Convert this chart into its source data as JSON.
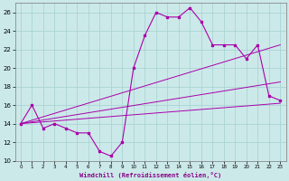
{
  "xlabel": "Windchill (Refroidissement éolien,°C)",
  "ylabel": "",
  "xlim": [
    -0.5,
    23.5
  ],
  "ylim": [
    10,
    27
  ],
  "xticks": [
    0,
    1,
    2,
    3,
    4,
    5,
    6,
    7,
    8,
    9,
    10,
    11,
    12,
    13,
    14,
    15,
    16,
    17,
    18,
    19,
    20,
    21,
    22,
    23
  ],
  "yticks": [
    10,
    12,
    14,
    16,
    18,
    20,
    22,
    24,
    26
  ],
  "bg_color": "#cce9e9",
  "grid_color": "#aad4d4",
  "line_color": "#aa00aa",
  "lines": [
    {
      "x": [
        0,
        1,
        2,
        3,
        4,
        5,
        6,
        7,
        8,
        9,
        10,
        11,
        12,
        13,
        14,
        15,
        16,
        17,
        18,
        19,
        20,
        21,
        22,
        23
      ],
      "y": [
        14,
        16,
        13.5,
        14,
        13.5,
        13,
        13,
        11,
        10.5,
        12,
        20,
        23.5,
        26,
        25.5,
        25.5,
        26.5,
        25,
        22.5,
        22.5,
        22.5,
        21,
        22.5,
        17,
        16.5
      ]
    },
    {
      "x": [
        0,
        23
      ],
      "y": [
        14,
        16.2
      ]
    },
    {
      "x": [
        0,
        23
      ],
      "y": [
        14,
        18.5
      ]
    },
    {
      "x": [
        0,
        23
      ],
      "y": [
        14,
        22.5
      ]
    }
  ],
  "figsize": [
    3.2,
    2.0
  ],
  "dpi": 100
}
